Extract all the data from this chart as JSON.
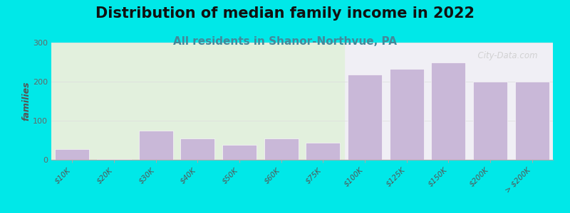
{
  "title": "Distribution of median family income in 2022",
  "subtitle": "All residents in Shanor-Northvue, PA",
  "categories": [
    "$10K",
    "$20K",
    "$30K",
    "$40K",
    "$50K",
    "$60K",
    "$75K",
    "$100K",
    "$125K",
    "$150K",
    "$200K",
    "> $200K"
  ],
  "values": [
    28,
    2,
    75,
    55,
    38,
    55,
    43,
    218,
    232,
    250,
    200,
    200
  ],
  "bar_color": "#c9b8d8",
  "background_outer": "#00e8e8",
  "plot_bg_left_top": "#ddeedd",
  "plot_bg_left_bot": "#eef8ee",
  "plot_bg_right": "#f0eff5",
  "ylabel": "families",
  "ylim": [
    0,
    300
  ],
  "yticks": [
    0,
    100,
    200,
    300
  ],
  "title_fontsize": 15,
  "subtitle_fontsize": 11,
  "watermark": "  City-Data.com"
}
